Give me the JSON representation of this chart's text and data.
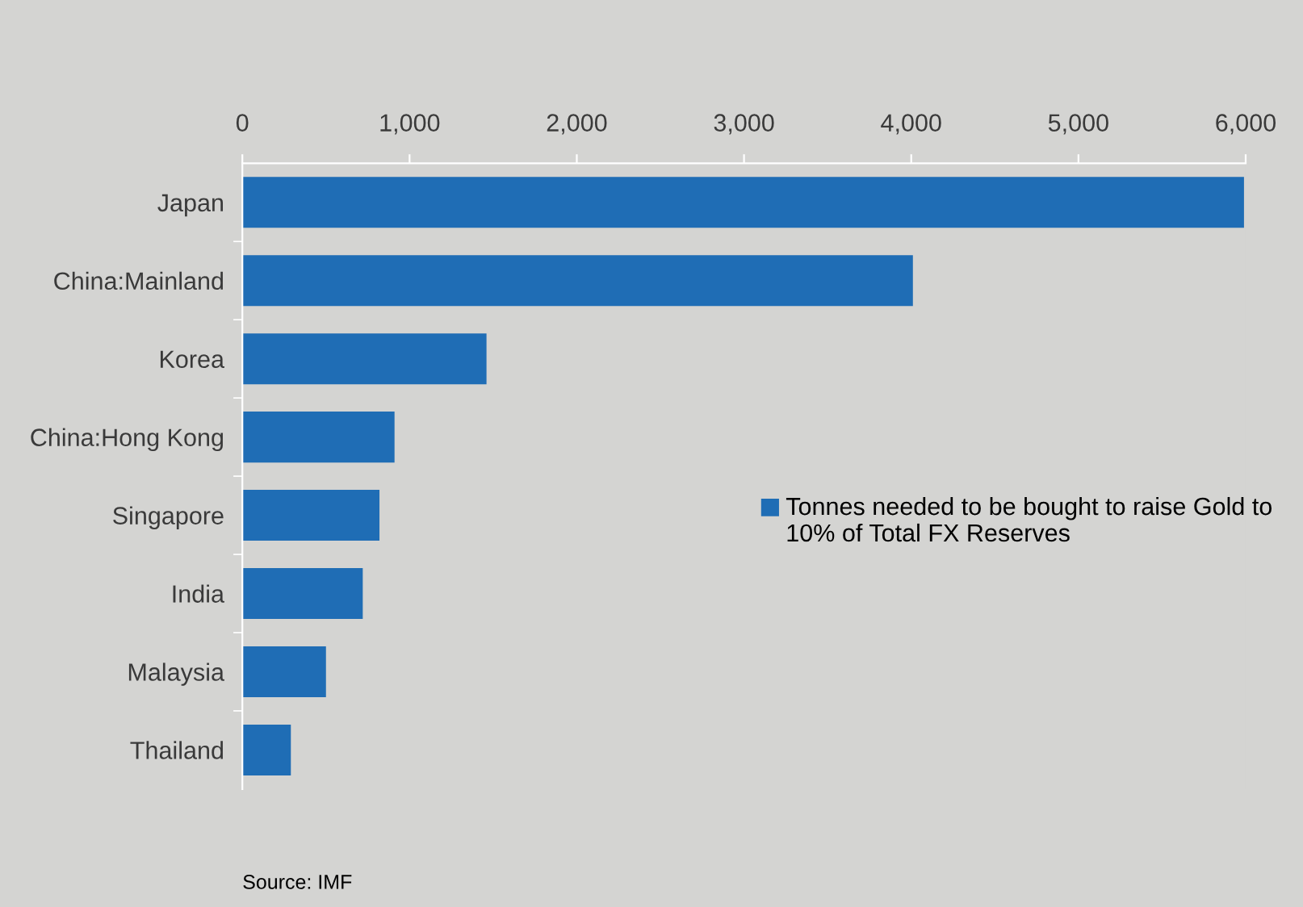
{
  "chart_data": {
    "type": "bar",
    "orientation": "horizontal",
    "categories": [
      "Japan",
      "China:Mainland",
      "Korea",
      "China:Hong Kong",
      "Singapore",
      "India",
      "Malaysia",
      "Thailand"
    ],
    "series": [
      {
        "name": "Tonnes needed to be bought to raise Gold to 10% of Total FX Reserves",
        "color": "#1f6db5",
        "values": [
          5990,
          4010,
          1460,
          910,
          820,
          720,
          500,
          290
        ]
      }
    ],
    "xlim": [
      0,
      6000
    ],
    "xticks": [
      {
        "value": 0,
        "label": "0"
      },
      {
        "value": 1000,
        "label": "1,000"
      },
      {
        "value": 2000,
        "label": "2,000"
      },
      {
        "value": 3000,
        "label": "3,000"
      },
      {
        "value": 4000,
        "label": "4,000"
      },
      {
        "value": 5000,
        "label": "5,000"
      },
      {
        "value": 6000,
        "label": "6,000"
      }
    ],
    "grid": false,
    "legend": "right",
    "annotations": [
      "Source: IMF"
    ]
  }
}
